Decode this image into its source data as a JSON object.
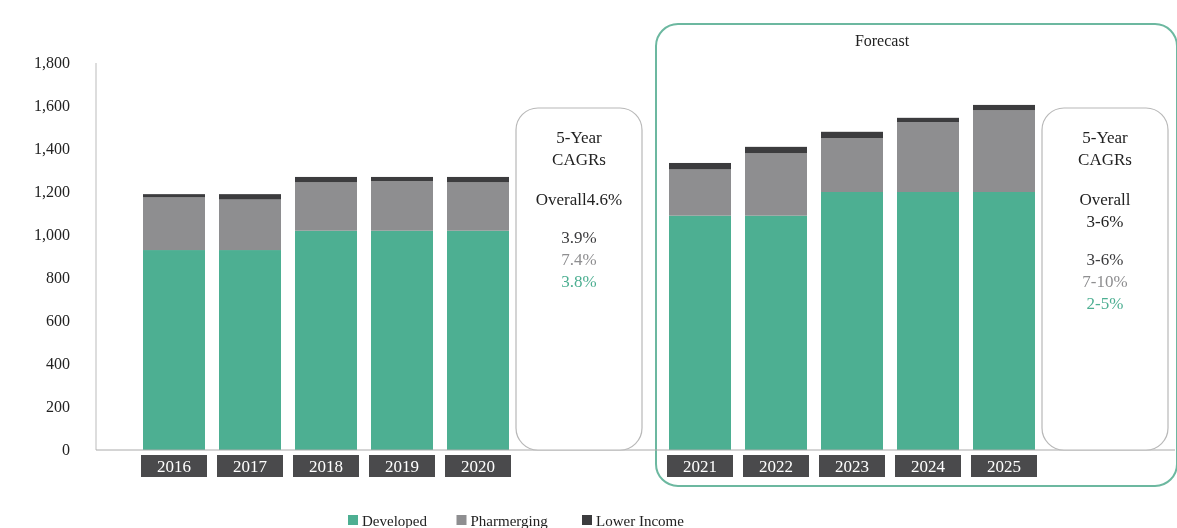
{
  "chart_data": {
    "type": "bar",
    "stacked": true,
    "categories": [
      "2016",
      "2017",
      "2018",
      "2019",
      "2020",
      "2021",
      "2022",
      "2023",
      "2024",
      "2025"
    ],
    "series": [
      {
        "name": "Developed",
        "color": "#4daf92",
        "values": [
          930,
          930,
          1020,
          1020,
          1020,
          1090,
          1090,
          1200,
          1200,
          1200
        ]
      },
      {
        "name": "Pharmerging",
        "color": "#8e8e90",
        "values": [
          245,
          235,
          225,
          230,
          225,
          215,
          290,
          250,
          325,
          380
        ]
      },
      {
        "name": "Lower Income",
        "color": "#3c3c3e",
        "values": [
          15,
          25,
          25,
          20,
          25,
          30,
          30,
          30,
          20,
          25
        ]
      }
    ],
    "ylim": [
      0,
      1800
    ],
    "yticks": [
      {
        "value": 0,
        "label": "0"
      },
      {
        "value": 200,
        "label": "200"
      },
      {
        "value": 400,
        "label": "400"
      },
      {
        "value": 600,
        "label": "600"
      },
      {
        "value": 800,
        "label": "800"
      },
      {
        "value": 1000,
        "label": "1,000"
      },
      {
        "value": 1200,
        "label": "1,200"
      },
      {
        "value": 1400,
        "label": "1,400"
      },
      {
        "value": 1600,
        "label": "1,600"
      },
      {
        "value": 1800,
        "label": "1,800"
      }
    ],
    "grid": false,
    "legend": "bottom",
    "annotations": [
      "Forecast",
      "5-Year CAGRs",
      "Overall4.6%",
      "3.9%",
      "7.4%",
      "3.8%",
      "5-Year CAGRs",
      "Overall 3-6%",
      "3-6%",
      "7-10%",
      "2-5%"
    ]
  }
}
